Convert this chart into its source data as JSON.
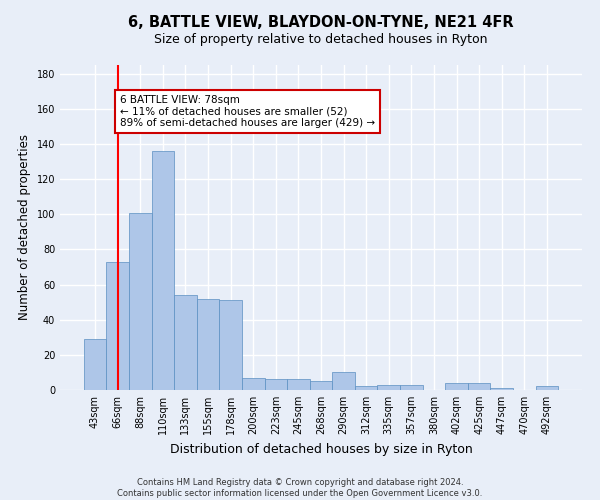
{
  "title": "6, BATTLE VIEW, BLAYDON-ON-TYNE, NE21 4FR",
  "subtitle": "Size of property relative to detached houses in Ryton",
  "xlabel": "Distribution of detached houses by size in Ryton",
  "ylabel": "Number of detached properties",
  "footnote": "Contains HM Land Registry data © Crown copyright and database right 2024.\nContains public sector information licensed under the Open Government Licence v3.0.",
  "bar_labels": [
    "43sqm",
    "66sqm",
    "88sqm",
    "110sqm",
    "133sqm",
    "155sqm",
    "178sqm",
    "200sqm",
    "223sqm",
    "245sqm",
    "268sqm",
    "290sqm",
    "312sqm",
    "335sqm",
    "357sqm",
    "380sqm",
    "402sqm",
    "425sqm",
    "447sqm",
    "470sqm",
    "492sqm"
  ],
  "bar_values": [
    29,
    73,
    101,
    136,
    54,
    52,
    51,
    7,
    6,
    6,
    5,
    10,
    2,
    3,
    3,
    0,
    4,
    4,
    1,
    0,
    2
  ],
  "bar_color": "#aec6e8",
  "bar_edge_color": "#5a8fc2",
  "red_line_x": 1.0,
  "annotation_text": "6 BATTLE VIEW: 78sqm\n← 11% of detached houses are smaller (52)\n89% of semi-detached houses are larger (429) →",
  "annotation_box_color": "#ffffff",
  "annotation_box_edge": "#cc0000",
  "ylim": [
    0,
    185
  ],
  "yticks": [
    0,
    20,
    40,
    60,
    80,
    100,
    120,
    140,
    160,
    180
  ],
  "background_color": "#e8eef8",
  "grid_color": "#ffffff",
  "title_fontsize": 10.5,
  "subtitle_fontsize": 9,
  "axis_label_fontsize": 8.5,
  "tick_fontsize": 7,
  "annotation_fontsize": 7.5
}
